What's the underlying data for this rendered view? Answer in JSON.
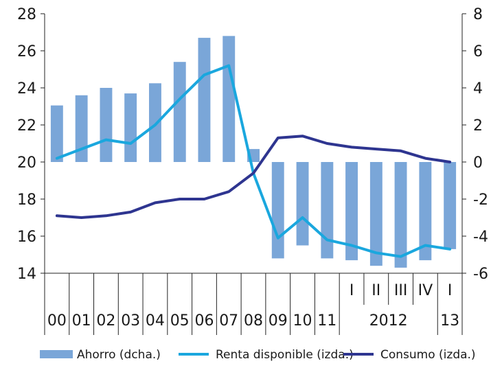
{
  "chart_data": {
    "type": "bar+line",
    "categories": [
      "00",
      "01",
      "02",
      "03",
      "04",
      "05",
      "06",
      "07",
      "08",
      "09",
      "10",
      "11",
      "I",
      "II",
      "III",
      "IV",
      "I"
    ],
    "x_groups": [
      {
        "label": "2012",
        "members": [
          "I",
          "II",
          "III",
          "IV"
        ]
      },
      {
        "label": "13",
        "members": [
          "I"
        ]
      }
    ],
    "left_axis": {
      "ylim": [
        14,
        28
      ],
      "ticks": [
        "14",
        "16",
        "18",
        "20",
        "22",
        "24",
        "26",
        "28"
      ]
    },
    "right_axis": {
      "ylim": [
        -6,
        8
      ],
      "ticks": [
        "-6",
        "-4",
        "-2",
        "0",
        "2",
        "4",
        "6",
        "8"
      ]
    },
    "series": [
      {
        "name": "Ahorro (dcha.)",
        "type": "bar",
        "axis": "right",
        "color": "#7aa6d8",
        "values": [
          3.05,
          3.6,
          4.0,
          3.7,
          4.25,
          5.4,
          6.7,
          6.8,
          0.7,
          -5.2,
          -4.5,
          -5.2,
          -5.3,
          -5.6,
          -5.7,
          -5.3,
          -4.7
        ]
      },
      {
        "name": "Renta disponible (izda.)",
        "type": "line",
        "axis": "left",
        "color": "#1aa7de",
        "values": [
          20.2,
          20.7,
          21.2,
          21.0,
          22.0,
          23.4,
          24.7,
          25.2,
          19.4,
          15.9,
          17.0,
          15.8,
          15.5,
          15.1,
          14.9,
          15.5,
          15.3
        ]
      },
      {
        "name": "Consumo (izda.)",
        "type": "line",
        "axis": "left",
        "color": "#2e3590",
        "values": [
          17.1,
          17.0,
          17.1,
          17.3,
          17.8,
          18.0,
          18.0,
          18.4,
          19.4,
          21.3,
          21.4,
          21.0,
          20.8,
          20.7,
          20.6,
          20.2,
          20.0
        ]
      }
    ],
    "legend": {
      "placement": "bottom"
    }
  }
}
